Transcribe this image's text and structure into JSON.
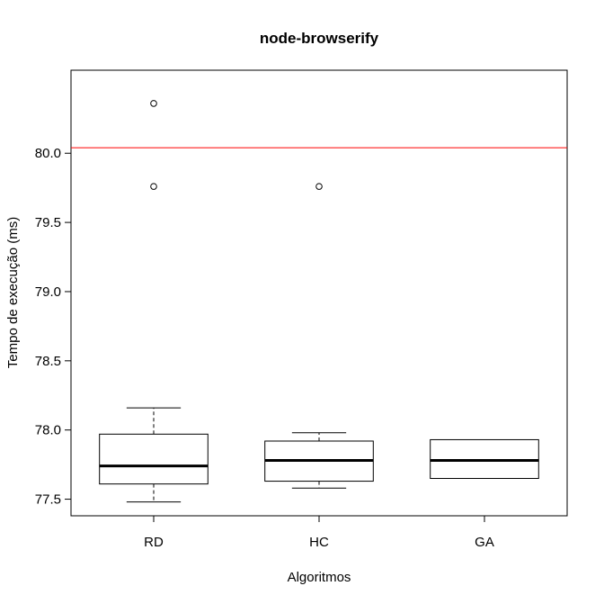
{
  "chart_data": {
    "type": "boxplot",
    "title": "node-browserify",
    "xlabel": "Algoritmos",
    "ylabel": "Tempo de execução (ms)",
    "categories": [
      "RD",
      "HC",
      "GA"
    ],
    "ylim": [
      77.38,
      80.6
    ],
    "yticks": [
      "77.5",
      "78.0",
      "78.5",
      "79.0",
      "79.5",
      "80.0"
    ],
    "reference_line": {
      "y": 80.04,
      "color": "#ff0000"
    },
    "boxes": [
      {
        "name": "RD",
        "whisker_low": 77.48,
        "q1": 77.61,
        "median": 77.74,
        "q3": 77.97,
        "whisker_high": 78.16,
        "outliers": [
          79.76,
          80.36
        ]
      },
      {
        "name": "HC",
        "whisker_low": 77.58,
        "q1": 77.63,
        "median": 77.78,
        "q3": 77.92,
        "whisker_high": 77.98,
        "outliers": [
          79.76
        ]
      },
      {
        "name": "GA",
        "whisker_low": 77.65,
        "q1": 77.65,
        "median": 77.78,
        "q3": 77.93,
        "whisker_high": 77.93,
        "outliers": []
      }
    ],
    "grid": false,
    "legend": "none"
  }
}
